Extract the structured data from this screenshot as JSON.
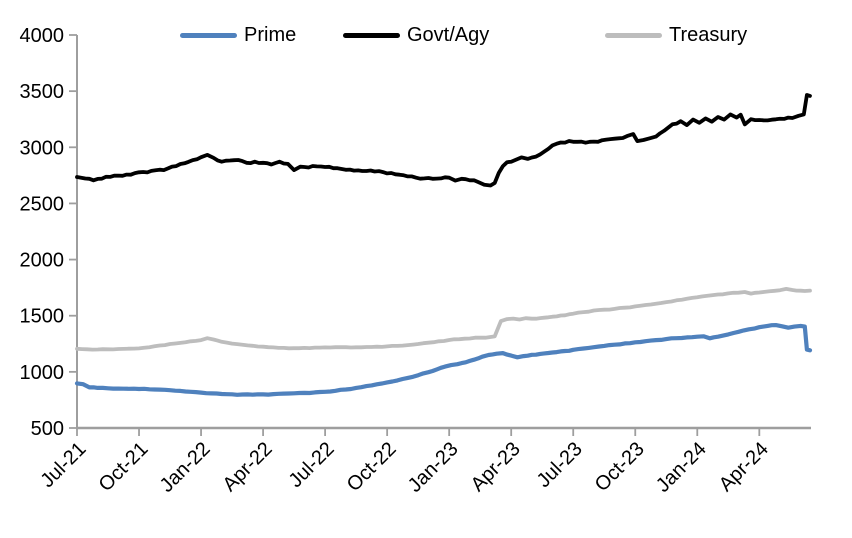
{
  "chart_data": {
    "type": "line",
    "title": "",
    "xlabel": "",
    "ylabel": "",
    "legend_position": "top",
    "grid": false,
    "axis_color": "#9e9e9e",
    "x_ticks": [
      "Jul-21",
      "Oct-21",
      "Jan-22",
      "Apr-22",
      "Jul-22",
      "Oct-22",
      "Jan-23",
      "Apr-23",
      "Jul-23",
      "Oct-23",
      "Jan-24",
      "Apr-24"
    ],
    "x_tick_interval_months": 3,
    "x_unit": "months-since-Jul-2021",
    "xlim": [
      0,
      35.5
    ],
    "y_ticks": [
      4000,
      3500,
      3000,
      2500,
      2000,
      1500,
      1000,
      500
    ],
    "ylim": [
      500,
      4000
    ],
    "series": [
      {
        "name": "Prime",
        "color": "#4f81bd",
        "width": 4.2,
        "jitter": 3.5,
        "points": [
          [
            0,
            897
          ],
          [
            0.3,
            890
          ],
          [
            0.6,
            862
          ],
          [
            1,
            857
          ],
          [
            1.5,
            854
          ],
          [
            2,
            851
          ],
          [
            2.5,
            849
          ],
          [
            3,
            847
          ],
          [
            3.5,
            845
          ],
          [
            4,
            842
          ],
          [
            4.5,
            837
          ],
          [
            5,
            830
          ],
          [
            5.5,
            822
          ],
          [
            6,
            815
          ],
          [
            6.5,
            808
          ],
          [
            7,
            803
          ],
          [
            7.5,
            800
          ],
          [
            8,
            798
          ],
          [
            8.5,
            797
          ],
          [
            9,
            799
          ],
          [
            9.5,
            802
          ],
          [
            10,
            806
          ],
          [
            10.5,
            809
          ],
          [
            11,
            813
          ],
          [
            11.5,
            817
          ],
          [
            12,
            822
          ],
          [
            12.5,
            831
          ],
          [
            13,
            843
          ],
          [
            13.5,
            857
          ],
          [
            14,
            873
          ],
          [
            14.5,
            889
          ],
          [
            15,
            906
          ],
          [
            15.5,
            924
          ],
          [
            16,
            946
          ],
          [
            16.5,
            970
          ],
          [
            17,
            997
          ],
          [
            17.4,
            1022
          ],
          [
            17.8,
            1047
          ],
          [
            18.1,
            1060
          ],
          [
            18.4,
            1068
          ],
          [
            18.8,
            1085
          ],
          [
            19.2,
            1108
          ],
          [
            19.6,
            1135
          ],
          [
            19.9,
            1150
          ],
          [
            20.3,
            1162
          ],
          [
            20.6,
            1167
          ],
          [
            21,
            1145
          ],
          [
            21.3,
            1130
          ],
          [
            21.6,
            1140
          ],
          [
            22,
            1152
          ],
          [
            22.4,
            1160
          ],
          [
            22.8,
            1168
          ],
          [
            23.2,
            1176
          ],
          [
            23.6,
            1186
          ],
          [
            24,
            1196
          ],
          [
            24.5,
            1208
          ],
          [
            25,
            1220
          ],
          [
            25.5,
            1231
          ],
          [
            26,
            1242
          ],
          [
            26.5,
            1253
          ],
          [
            27,
            1263
          ],
          [
            27.5,
            1273
          ],
          [
            28,
            1283
          ],
          [
            28.5,
            1292
          ],
          [
            29,
            1300
          ],
          [
            29.5,
            1307
          ],
          [
            30,
            1313
          ],
          [
            30.3,
            1317
          ],
          [
            30.6,
            1299
          ],
          [
            31,
            1313
          ],
          [
            31.5,
            1334
          ],
          [
            32,
            1357
          ],
          [
            32.5,
            1379
          ],
          [
            33,
            1398
          ],
          [
            33.4,
            1409
          ],
          [
            33.8,
            1416
          ],
          [
            34.1,
            1406
          ],
          [
            34.4,
            1393
          ],
          [
            34.7,
            1403
          ],
          [
            35,
            1409
          ],
          [
            35.2,
            1403
          ],
          [
            35.3,
            1198
          ],
          [
            35.45,
            1192
          ]
        ]
      },
      {
        "name": "Govt/Agy",
        "color": "#000000",
        "width": 3.8,
        "jitter": 9,
        "points": [
          [
            0,
            2735
          ],
          [
            0.4,
            2722
          ],
          [
            0.8,
            2706
          ],
          [
            1.2,
            2720
          ],
          [
            1.6,
            2736
          ],
          [
            2,
            2748
          ],
          [
            2.4,
            2757
          ],
          [
            2.8,
            2770
          ],
          [
            3.2,
            2780
          ],
          [
            3.6,
            2790
          ],
          [
            4,
            2800
          ],
          [
            4.4,
            2812
          ],
          [
            4.8,
            2832
          ],
          [
            5.2,
            2857
          ],
          [
            5.6,
            2886
          ],
          [
            6,
            2912
          ],
          [
            6.3,
            2932
          ],
          [
            6.6,
            2906
          ],
          [
            7,
            2872
          ],
          [
            7.4,
            2882
          ],
          [
            7.8,
            2887
          ],
          [
            8.2,
            2862
          ],
          [
            8.6,
            2872
          ],
          [
            9,
            2862
          ],
          [
            9.4,
            2847
          ],
          [
            9.8,
            2872
          ],
          [
            10.2,
            2852
          ],
          [
            10.5,
            2797
          ],
          [
            10.8,
            2827
          ],
          [
            11.2,
            2820
          ],
          [
            11.6,
            2830
          ],
          [
            12,
            2824
          ],
          [
            12.4,
            2814
          ],
          [
            12.8,
            2807
          ],
          [
            13.2,
            2801
          ],
          [
            13.6,
            2794
          ],
          [
            14,
            2789
          ],
          [
            14.4,
            2784
          ],
          [
            14.8,
            2779
          ],
          [
            15.2,
            2771
          ],
          [
            15.6,
            2756
          ],
          [
            16,
            2741
          ],
          [
            16.4,
            2729
          ],
          [
            16.8,
            2723
          ],
          [
            17.2,
            2719
          ],
          [
            17.6,
            2723
          ],
          [
            18,
            2729
          ],
          [
            18.3,
            2703
          ],
          [
            18.6,
            2719
          ],
          [
            19,
            2706
          ],
          [
            19.4,
            2691
          ],
          [
            19.7,
            2667
          ],
          [
            20,
            2660
          ],
          [
            20.2,
            2682
          ],
          [
            20.4,
            2772
          ],
          [
            20.6,
            2832
          ],
          [
            20.8,
            2867
          ],
          [
            21.2,
            2887
          ],
          [
            21.5,
            2910
          ],
          [
            21.8,
            2897
          ],
          [
            22.2,
            2917
          ],
          [
            22.6,
            2962
          ],
          [
            23,
            3017
          ],
          [
            23.4,
            3043
          ],
          [
            23.8,
            3056
          ],
          [
            24.2,
            3049
          ],
          [
            24.6,
            3041
          ],
          [
            25,
            3051
          ],
          [
            25.4,
            3063
          ],
          [
            25.8,
            3073
          ],
          [
            26.2,
            3080
          ],
          [
            26.6,
            3100
          ],
          [
            26.9,
            3118
          ],
          [
            27.1,
            3055
          ],
          [
            27.4,
            3065
          ],
          [
            27.7,
            3080
          ],
          [
            28,
            3095
          ],
          [
            28.4,
            3148
          ],
          [
            28.8,
            3205
          ],
          [
            29.2,
            3232
          ],
          [
            29.5,
            3198
          ],
          [
            29.8,
            3247
          ],
          [
            30.1,
            3218
          ],
          [
            30.4,
            3257
          ],
          [
            30.7,
            3228
          ],
          [
            31,
            3270
          ],
          [
            31.3,
            3247
          ],
          [
            31.6,
            3293
          ],
          [
            31.9,
            3264
          ],
          [
            32.1,
            3290
          ],
          [
            32.3,
            3204
          ],
          [
            32.6,
            3250
          ],
          [
            33,
            3243
          ],
          [
            33.4,
            3239
          ],
          [
            33.8,
            3249
          ],
          [
            34.2,
            3253
          ],
          [
            34.6,
            3261
          ],
          [
            34.9,
            3280
          ],
          [
            35.15,
            3293
          ],
          [
            35.3,
            3466
          ],
          [
            35.45,
            3458
          ]
        ]
      },
      {
        "name": "Treasury",
        "color": "#bdbdbd",
        "width": 3.8,
        "jitter": 3.5,
        "points": [
          [
            0,
            1205
          ],
          [
            0.5,
            1201
          ],
          [
            1,
            1199
          ],
          [
            1.5,
            1201
          ],
          [
            2,
            1204
          ],
          [
            2.5,
            1206
          ],
          [
            3,
            1209
          ],
          [
            3.5,
            1220
          ],
          [
            4,
            1235
          ],
          [
            4.5,
            1248
          ],
          [
            5,
            1258
          ],
          [
            5.5,
            1272
          ],
          [
            6,
            1283
          ],
          [
            6.3,
            1300
          ],
          [
            6.6,
            1288
          ],
          [
            7,
            1268
          ],
          [
            7.5,
            1252
          ],
          [
            8,
            1242
          ],
          [
            8.5,
            1232
          ],
          [
            9,
            1224
          ],
          [
            9.5,
            1218
          ],
          [
            10,
            1213
          ],
          [
            10.5,
            1211
          ],
          [
            11,
            1213
          ],
          [
            11.5,
            1216
          ],
          [
            12,
            1218
          ],
          [
            12.5,
            1220
          ],
          [
            13,
            1220
          ],
          [
            13.5,
            1219
          ],
          [
            14,
            1221
          ],
          [
            14.5,
            1224
          ],
          [
            15,
            1227
          ],
          [
            15.5,
            1231
          ],
          [
            16,
            1238
          ],
          [
            16.5,
            1248
          ],
          [
            17,
            1260
          ],
          [
            17.5,
            1272
          ],
          [
            18,
            1284
          ],
          [
            18.5,
            1291
          ],
          [
            19,
            1297
          ],
          [
            19.5,
            1304
          ],
          [
            20,
            1310
          ],
          [
            20.2,
            1316
          ],
          [
            20.5,
            1452
          ],
          [
            20.8,
            1470
          ],
          [
            21.1,
            1474
          ],
          [
            21.4,
            1466
          ],
          [
            21.7,
            1478
          ],
          [
            22,
            1473
          ],
          [
            22.4,
            1479
          ],
          [
            22.8,
            1486
          ],
          [
            23.2,
            1494
          ],
          [
            23.6,
            1504
          ],
          [
            24,
            1518
          ],
          [
            24.5,
            1532
          ],
          [
            25,
            1546
          ],
          [
            25.5,
            1554
          ],
          [
            26,
            1561
          ],
          [
            26.5,
            1571
          ],
          [
            27,
            1583
          ],
          [
            27.5,
            1595
          ],
          [
            28,
            1607
          ],
          [
            28.5,
            1621
          ],
          [
            29,
            1637
          ],
          [
            29.5,
            1651
          ],
          [
            30,
            1664
          ],
          [
            30.5,
            1677
          ],
          [
            31,
            1689
          ],
          [
            31.5,
            1699
          ],
          [
            32,
            1705
          ],
          [
            32.3,
            1711
          ],
          [
            32.6,
            1697
          ],
          [
            33,
            1707
          ],
          [
            33.5,
            1717
          ],
          [
            34,
            1727
          ],
          [
            34.3,
            1739
          ],
          [
            34.6,
            1729
          ],
          [
            35,
            1723
          ],
          [
            35.2,
            1720
          ],
          [
            35.45,
            1724
          ]
        ]
      }
    ]
  }
}
